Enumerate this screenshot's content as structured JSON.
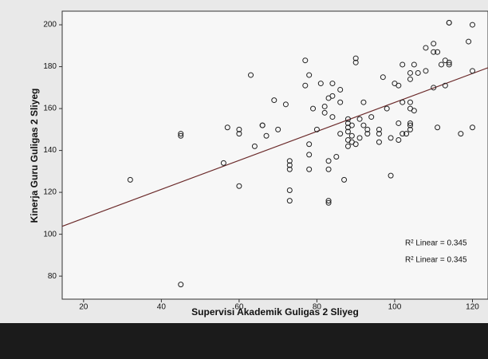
{
  "chart_data": {
    "type": "scatter",
    "x_label": "Supervisi Akademik Guligas 2 Sliyeg",
    "y_label": "Kinerja Guru Guligas 2 Sliyeg",
    "xlim": [
      14.5,
      124
    ],
    "ylim": [
      69,
      206.5
    ],
    "xticks": [
      20,
      40,
      60,
      80,
      100,
      120
    ],
    "yticks": [
      80,
      100,
      120,
      140,
      160,
      180,
      200
    ],
    "series": [
      {
        "color": "#222222",
        "x": [
          32,
          45,
          45,
          45,
          56,
          57,
          60,
          60,
          60,
          63,
          64,
          66,
          66,
          67,
          69,
          70,
          72,
          73,
          73,
          73,
          73,
          73,
          77,
          77,
          78,
          78,
          78,
          78,
          79,
          80,
          81,
          82,
          82,
          83,
          83,
          83,
          83,
          83,
          84,
          84,
          84,
          85,
          86,
          86,
          86,
          87,
          88,
          88,
          88,
          88,
          88,
          88,
          89,
          89,
          89,
          90,
          90,
          90,
          91,
          91,
          92,
          92,
          93,
          93,
          94,
          96,
          96,
          96,
          97,
          98,
          99,
          99,
          100,
          101,
          101,
          101,
          102,
          102,
          102,
          103,
          104,
          104,
          104,
          104,
          104,
          104,
          104,
          105,
          105,
          106,
          108,
          108,
          110,
          110,
          111,
          110,
          111,
          112,
          113,
          113,
          114,
          114,
          114,
          114,
          117,
          119,
          120,
          120,
          120
        ],
        "y": [
          126,
          148,
          147,
          76,
          134,
          151,
          150,
          148,
          123,
          176,
          142,
          152,
          152,
          147,
          164,
          150,
          162,
          135,
          133,
          131,
          121,
          116,
          183,
          171,
          176,
          143,
          138,
          131,
          160,
          150,
          172,
          158,
          161,
          165,
          135,
          131,
          116,
          115,
          156,
          172,
          166,
          137,
          169,
          163,
          148,
          126,
          142,
          155,
          153,
          151,
          149,
          145,
          152,
          147,
          144,
          184,
          182,
          143,
          146,
          155,
          152,
          163,
          148,
          150,
          156,
          150,
          144,
          148,
          175,
          160,
          128,
          146,
          172,
          171,
          153,
          145,
          181,
          163,
          148,
          148,
          153,
          152,
          150,
          163,
          160,
          177,
          174,
          181,
          159,
          177,
          178,
          189,
          187,
          191,
          187,
          170,
          151,
          181,
          183,
          171,
          201,
          201,
          182,
          181,
          148,
          192,
          200,
          178,
          151
        ]
      }
    ],
    "trend_line": {
      "color": "#6b2a2a",
      "x": [
        14.5,
        124
      ],
      "y": [
        103.8,
        179.5
      ]
    },
    "annotations": [
      "R² Linear = 0.345",
      "R² Linear = 0.345"
    ]
  }
}
